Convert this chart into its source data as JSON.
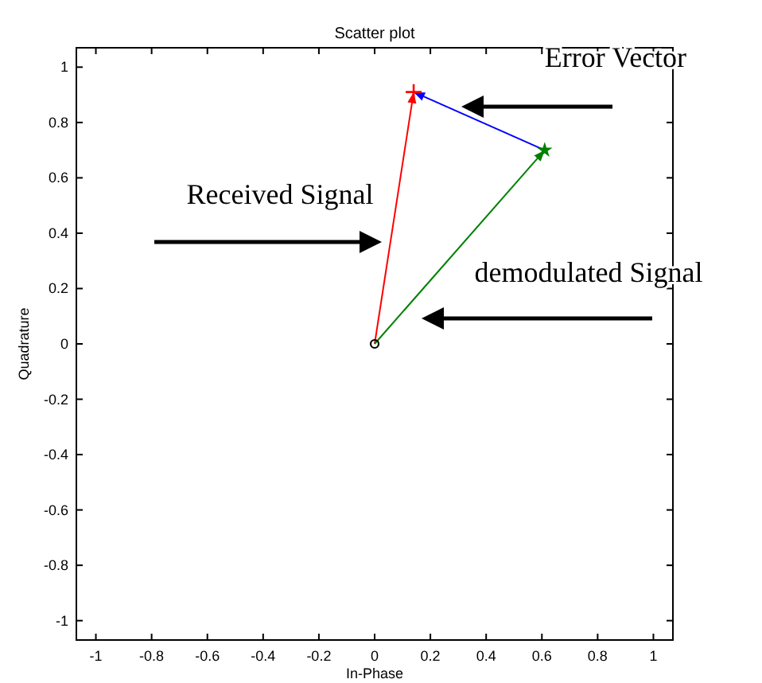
{
  "chart_data": {
    "type": "scatter",
    "title": "Scatter plot",
    "xlabel": "In-Phase",
    "ylabel": "Quadrature",
    "xlim": [
      -1.07,
      1.07
    ],
    "ylim": [
      -1.07,
      1.07
    ],
    "xticks": [
      -1,
      -0.8,
      -0.6,
      -0.4,
      -0.2,
      0,
      0.2,
      0.4,
      0.6,
      0.8,
      1
    ],
    "yticks": [
      -1,
      -0.8,
      -0.6,
      -0.4,
      -0.2,
      0,
      0.2,
      0.4,
      0.6,
      0.8,
      1
    ],
    "grid": false,
    "series": [
      {
        "type": "line",
        "color": "#ff0000",
        "x": [
          0,
          0.14
        ],
        "values": [
          0,
          0.91
        ],
        "marker": "none"
      },
      {
        "type": "line",
        "color": "#008000",
        "x": [
          0,
          0.61
        ],
        "values": [
          0,
          0.7
        ],
        "marker": "none"
      },
      {
        "type": "line",
        "color": "#0000ff",
        "x": [
          0.61,
          0.14
        ],
        "values": [
          0.7,
          0.91
        ],
        "marker": "none"
      },
      {
        "color": "#ff0000",
        "x": [
          0.14
        ],
        "values": [
          0.91
        ],
        "marker": "cross"
      },
      {
        "color": "#008000",
        "x": [
          0.61
        ],
        "values": [
          0.7
        ],
        "marker": "star"
      },
      {
        "color": "#000000",
        "x": [
          0
        ],
        "values": [
          0
        ],
        "marker": "circle"
      }
    ],
    "annotations": [
      "Error Vector",
      "Received Signal",
      "demodulated Signal"
    ]
  }
}
